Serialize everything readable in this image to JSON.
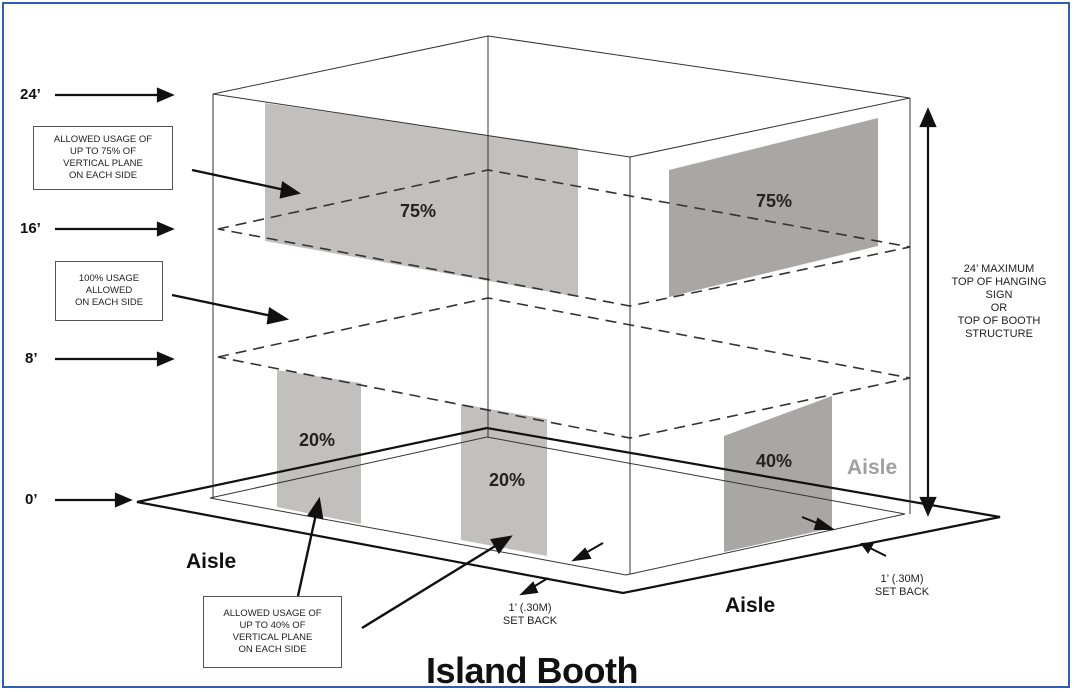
{
  "title": "Island Booth",
  "heights": [
    "24’",
    "16’",
    "8’",
    "0’"
  ],
  "notes": {
    "upper": [
      "ALLOWED USAGE OF",
      "UP TO 75% OF",
      "VERTICAL PLANE",
      "ON EACH SIDE"
    ],
    "middle": [
      "100% USAGE",
      "ALLOWED",
      "ON EACH SIDE"
    ],
    "lower": [
      "ALLOWED USAGE OF",
      "UP TO 40% OF",
      "VERTICAL PLANE",
      "ON EACH SIDE"
    ]
  },
  "max_height_note": [
    "24’ MAXIMUM",
    "TOP OF HANGING SIGN",
    "OR",
    "TOP OF BOOTH",
    "STRUCTURE"
  ],
  "percentages": {
    "upper_front": "75%",
    "upper_right": "75%",
    "lower_front_left": "20%",
    "lower_front_mid": "20%",
    "lower_right": "40%"
  },
  "aisles": {
    "left": "Aisle",
    "front": "Aisle",
    "right": "Aisle"
  },
  "setback": {
    "front": [
      "1’ (.30M)",
      "SET BACK"
    ],
    "right": [
      "1’ (.30M)",
      "SET BACK"
    ]
  },
  "colors": {
    "shade_light": "#c2bfbf",
    "shade_dark": "#a9a6a6",
    "frame": "#2f5fb3"
  }
}
